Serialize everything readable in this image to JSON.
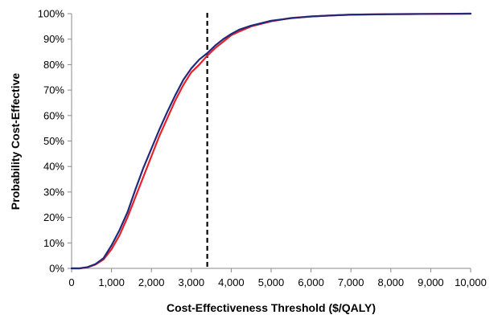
{
  "chart_data": {
    "type": "line",
    "xlabel": "Cost-Effectiveness Threshold ($/QALY)",
    "ylabel": "Probability Cost-Effective",
    "xlim": [
      0,
      10000
    ],
    "ylim": [
      0,
      100
    ],
    "x_ticks": [
      0,
      1000,
      2000,
      3000,
      4000,
      5000,
      6000,
      7000,
      8000,
      9000,
      10000
    ],
    "x_tick_labels": [
      "0",
      "1,000",
      "2,000",
      "3,000",
      "4,000",
      "5,000",
      "6,000",
      "7,000",
      "8,000",
      "9,000",
      "10,000"
    ],
    "y_ticks": [
      0,
      10,
      20,
      30,
      40,
      50,
      60,
      70,
      80,
      90,
      100
    ],
    "y_tick_labels": [
      "0%",
      "10%",
      "20%",
      "30%",
      "40%",
      "50%",
      "60%",
      "70%",
      "80%",
      "90%",
      "100%"
    ],
    "grid": false,
    "legend": "none",
    "reference_line": {
      "x": 3400,
      "style": "dashed",
      "color": "#000000"
    },
    "series": [
      {
        "color": "#e8202a",
        "x": [
          0,
          200,
          400,
          600,
          800,
          1000,
          1200,
          1400,
          1600,
          1800,
          2000,
          2200,
          2400,
          2600,
          2800,
          3000,
          3200,
          3400,
          3600,
          3800,
          4000,
          4200,
          4500,
          5000,
          5500,
          6000,
          6500,
          7000,
          8000,
          9000,
          10000
        ],
        "values": [
          0,
          0,
          0.4,
          1.5,
          3.5,
          7.5,
          13,
          20,
          28,
          36,
          44,
          52,
          59,
          66,
          72,
          77,
          80,
          83.5,
          86.5,
          89,
          91.5,
          93,
          95,
          97,
          98.3,
          98.9,
          99.3,
          99.6,
          99.8,
          99.9,
          100
        ]
      },
      {
        "color": "#1f2a7a",
        "x": [
          0,
          200,
          400,
          600,
          800,
          1000,
          1200,
          1400,
          1600,
          1800,
          2000,
          2200,
          2400,
          2600,
          2800,
          3000,
          3200,
          3400,
          3600,
          3800,
          4000,
          4200,
          4500,
          5000,
          5500,
          6000,
          6500,
          7000,
          8000,
          9000,
          10000
        ],
        "values": [
          0,
          0,
          0.5,
          1.7,
          4,
          9,
          15,
          22,
          31,
          39.5,
          47,
          54.5,
          61.5,
          68,
          74,
          78.5,
          82,
          84.5,
          87.5,
          90,
          92,
          93.7,
          95.3,
          97.2,
          98.2,
          98.9,
          99.3,
          99.6,
          99.8,
          99.9,
          100
        ]
      }
    ]
  }
}
